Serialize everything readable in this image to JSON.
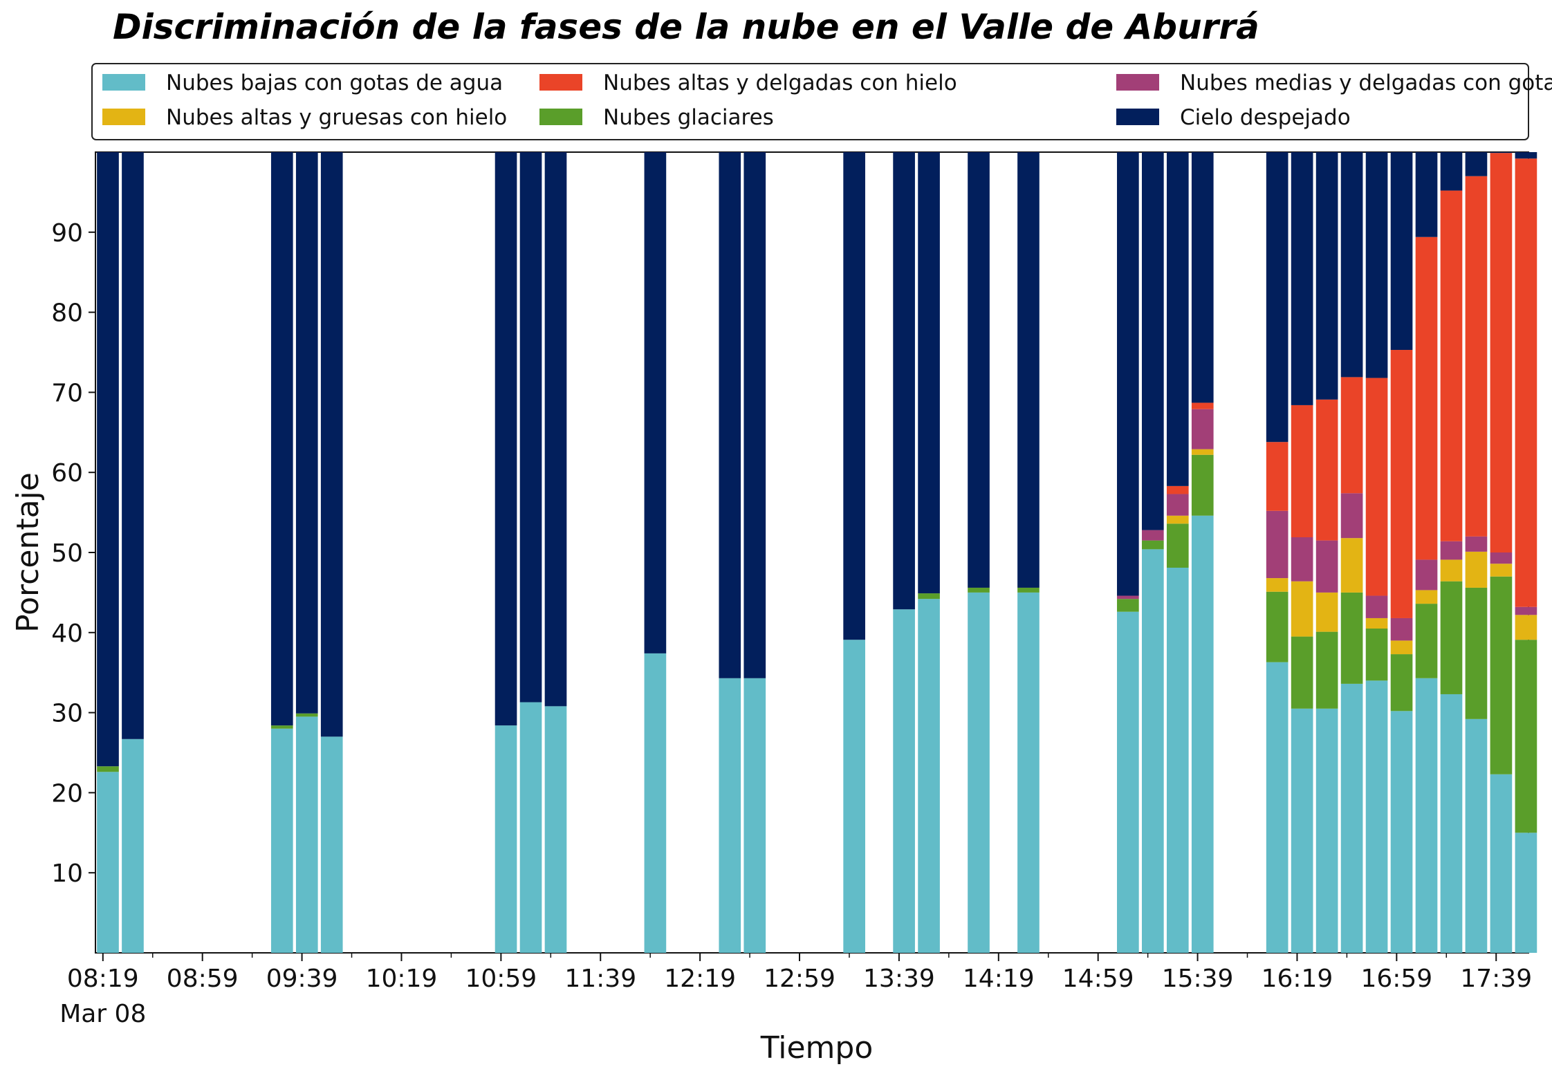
{
  "chart_data": {
    "type": "bar",
    "stacked": true,
    "title": "Discriminación de la fases de la nube en el Valle de Aburrá",
    "xlabel": "Tiempo",
    "ylabel": "Porcentaje",
    "ylim": [
      0,
      100
    ],
    "yticks": [
      10,
      20,
      30,
      40,
      50,
      60,
      70,
      80,
      90
    ],
    "x_range_minutes": [
      "08:16",
      "17:52"
    ],
    "bar_width_minutes": 8.8,
    "xticks": [
      {
        "label": "08:19",
        "time": "08:19",
        "sub": "Mar 08"
      },
      {
        "label": "08:59",
        "time": "08:59"
      },
      {
        "label": "09:39",
        "time": "09:39"
      },
      {
        "label": "10:19",
        "time": "10:19"
      },
      {
        "label": "10:59",
        "time": "10:59"
      },
      {
        "label": "11:39",
        "time": "11:39"
      },
      {
        "label": "12:19",
        "time": "12:19"
      },
      {
        "label": "12:59",
        "time": "12:59"
      },
      {
        "label": "13:39",
        "time": "13:39"
      },
      {
        "label": "14:19",
        "time": "14:19"
      },
      {
        "label": "14:59",
        "time": "14:59"
      },
      {
        "label": "15:39",
        "time": "15:39"
      },
      {
        "label": "16:19",
        "time": "16:19"
      },
      {
        "label": "16:59",
        "time": "16:59"
      },
      {
        "label": "17:39",
        "time": "17:39"
      }
    ],
    "grid": false,
    "legend_position": "top",
    "series": [
      {
        "name": "Nubes bajas con gotas de agua",
        "color": "#62bcc8"
      },
      {
        "name": "Nubes glaciares",
        "color": "#5a9e2a"
      },
      {
        "name": "Nubes altas y gruesas con hielo",
        "color": "#e3b414"
      },
      {
        "name": "Nubes medias y delgadas con gotas de agua",
        "color": "#a23f77"
      },
      {
        "name": "Nubes altas y delgadas con hielo",
        "color": "#ea4428"
      },
      {
        "name": "Cielo despejado",
        "color": "#021f5c"
      }
    ],
    "legend_order": [
      0,
      2,
      4,
      1,
      3,
      5
    ],
    "bars": [
      {
        "time": "08:21",
        "values": [
          22.6,
          0.7,
          0,
          0,
          0,
          76.7
        ]
      },
      {
        "time": "08:31",
        "values": [
          26.7,
          0,
          0,
          0,
          0,
          73.3
        ]
      },
      {
        "time": "09:31",
        "values": [
          28.0,
          0.4,
          0,
          0,
          0,
          71.6
        ]
      },
      {
        "time": "09:41",
        "values": [
          29.5,
          0.4,
          0,
          0,
          0,
          70.1
        ]
      },
      {
        "time": "09:51",
        "values": [
          27.0,
          0,
          0,
          0,
          0,
          73.0
        ]
      },
      {
        "time": "11:01",
        "values": [
          28.4,
          0,
          0,
          0,
          0,
          71.6
        ]
      },
      {
        "time": "11:11",
        "values": [
          31.3,
          0,
          0,
          0,
          0,
          68.7
        ]
      },
      {
        "time": "11:21",
        "values": [
          30.8,
          0,
          0,
          0,
          0,
          69.2
        ]
      },
      {
        "time": "12:01",
        "values": [
          37.4,
          0,
          0,
          0,
          0,
          62.6
        ]
      },
      {
        "time": "12:31",
        "values": [
          34.3,
          0,
          0,
          0,
          0,
          65.7
        ]
      },
      {
        "time": "12:41",
        "values": [
          34.3,
          0,
          0,
          0,
          0,
          65.7
        ]
      },
      {
        "time": "13:21",
        "values": [
          39.1,
          0,
          0,
          0,
          0,
          60.9
        ]
      },
      {
        "time": "13:41",
        "values": [
          42.9,
          0,
          0,
          0,
          0,
          57.1
        ]
      },
      {
        "time": "13:51",
        "values": [
          44.2,
          0.7,
          0,
          0,
          0,
          55.1
        ]
      },
      {
        "time": "14:11",
        "values": [
          45.0,
          0.6,
          0,
          0,
          0,
          54.4
        ]
      },
      {
        "time": "14:31",
        "values": [
          45.0,
          0.6,
          0,
          0,
          0,
          54.4
        ]
      },
      {
        "time": "15:11",
        "values": [
          42.6,
          1.6,
          0,
          0.4,
          0,
          55.4
        ]
      },
      {
        "time": "15:21",
        "values": [
          50.4,
          1.1,
          0,
          1.3,
          0,
          47.2
        ]
      },
      {
        "time": "15:31",
        "values": [
          48.1,
          5.5,
          1.0,
          2.7,
          1.0,
          41.7
        ]
      },
      {
        "time": "15:41",
        "values": [
          54.6,
          7.6,
          0.7,
          5.0,
          0.8,
          31.3
        ]
      },
      {
        "time": "16:11",
        "values": [
          36.3,
          8.8,
          1.7,
          8.4,
          8.6,
          36.2
        ]
      },
      {
        "time": "16:21",
        "values": [
          30.5,
          9.0,
          6.9,
          5.5,
          16.5,
          31.6
        ]
      },
      {
        "time": "16:31",
        "values": [
          30.5,
          9.6,
          4.9,
          6.5,
          17.6,
          30.9
        ]
      },
      {
        "time": "16:41",
        "values": [
          33.6,
          11.4,
          6.8,
          5.6,
          14.5,
          28.1
        ]
      },
      {
        "time": "16:51",
        "values": [
          34.0,
          6.5,
          1.3,
          2.8,
          27.2,
          28.2
        ]
      },
      {
        "time": "17:01",
        "values": [
          30.2,
          7.1,
          1.7,
          2.8,
          33.5,
          24.7
        ]
      },
      {
        "time": "17:11",
        "values": [
          34.3,
          9.3,
          1.7,
          3.8,
          40.3,
          10.6
        ]
      },
      {
        "time": "17:21",
        "values": [
          32.3,
          14.1,
          2.7,
          2.3,
          43.8,
          4.8
        ]
      },
      {
        "time": "17:31",
        "values": [
          29.2,
          16.4,
          4.5,
          1.9,
          45.0,
          3.0
        ]
      },
      {
        "time": "17:41",
        "values": [
          22.3,
          24.7,
          1.6,
          1.4,
          49.9,
          0.1
        ]
      },
      {
        "time": "17:51",
        "values": [
          15.0,
          24.1,
          3.1,
          1.0,
          56.0,
          0.8
        ]
      }
    ]
  }
}
